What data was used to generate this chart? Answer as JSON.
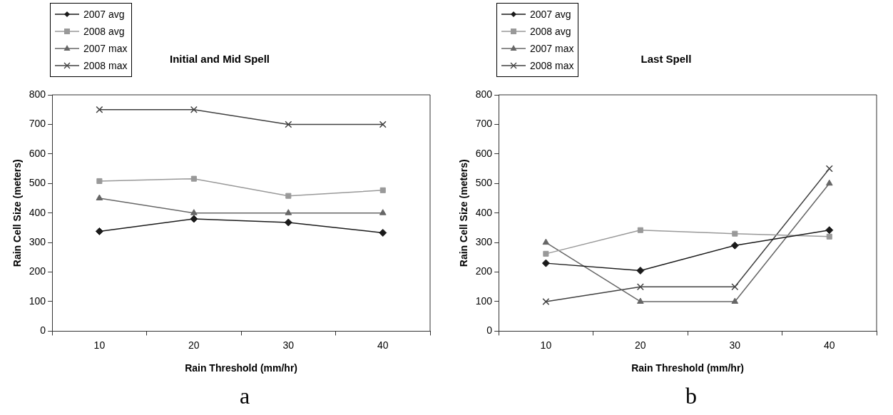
{
  "chart_data": [
    {
      "type": "line",
      "title": "Initial and Mid Spell",
      "xlabel": "Rain Threshold (mm/hr)",
      "ylabel": "Rain Cell Size (meters)",
      "categories": [
        "10",
        "20",
        "30",
        "40"
      ],
      "series": [
        {
          "name": "2007 avg",
          "color": "#1a1a1a",
          "marker": "diamond",
          "values": [
            338,
            380,
            368,
            333
          ]
        },
        {
          "name": "2008 avg",
          "color": "#999999",
          "marker": "square",
          "values": [
            508,
            516,
            458,
            477
          ]
        },
        {
          "name": "2007 max",
          "color": "#666666",
          "marker": "triangle",
          "values": [
            450,
            400,
            400,
            400
          ]
        },
        {
          "name": "2008 max",
          "color": "#404040",
          "marker": "cross",
          "values": [
            750,
            750,
            700,
            700
          ]
        }
      ],
      "ylim": [
        0,
        800
      ],
      "yticks": [
        0,
        100,
        200,
        300,
        400,
        500,
        600,
        700,
        800
      ],
      "grid": false,
      "legend": "top left",
      "annotations": [
        "a"
      ]
    },
    {
      "type": "line",
      "title": "Last Spell",
      "xlabel": "Rain Threshold (mm/hr)",
      "ylabel": "Rain Cell Size (meters)",
      "categories": [
        "10",
        "20",
        "30",
        "40"
      ],
      "series": [
        {
          "name": "2007 avg",
          "color": "#1a1a1a",
          "marker": "diamond",
          "values": [
            230,
            205,
            290,
            342
          ]
        },
        {
          "name": "2008 avg",
          "color": "#999999",
          "marker": "square",
          "values": [
            262,
            342,
            330,
            320
          ]
        },
        {
          "name": "2007 max",
          "color": "#666666",
          "marker": "triangle",
          "values": [
            300,
            100,
            100,
            500
          ]
        },
        {
          "name": "2008 max",
          "color": "#404040",
          "marker": "cross",
          "values": [
            100,
            150,
            150,
            550
          ]
        }
      ],
      "ylim": [
        0,
        800
      ],
      "yticks": [
        0,
        100,
        200,
        300,
        400,
        500,
        600,
        700,
        800
      ],
      "grid": false,
      "legend": "top left",
      "annotations": [
        "b"
      ]
    }
  ]
}
